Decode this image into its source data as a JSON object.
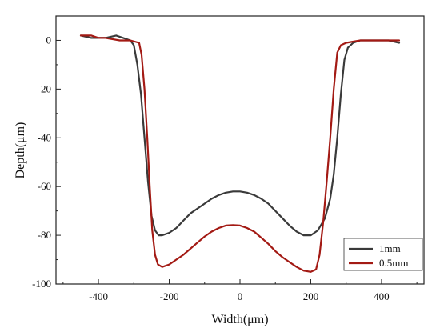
{
  "chart_data": {
    "type": "line",
    "title": "",
    "xlabel": "Width(μm)",
    "ylabel": "Depth(μm)",
    "xlim": [
      -520,
      520
    ],
    "ylim": [
      -100,
      10
    ],
    "x_ticks": [
      -400,
      -200,
      0,
      200,
      400
    ],
    "y_ticks": [
      0,
      -20,
      -40,
      -60,
      -80,
      -100
    ],
    "grid": false,
    "legend_position": "bottom-right",
    "series": [
      {
        "name": "1mm",
        "color": "#3a3a3a",
        "points": [
          [
            -450,
            2
          ],
          [
            -420,
            1
          ],
          [
            -380,
            1
          ],
          [
            -350,
            2
          ],
          [
            -330,
            1
          ],
          [
            -310,
            0
          ],
          [
            -300,
            -2
          ],
          [
            -290,
            -10
          ],
          [
            -280,
            -22
          ],
          [
            -270,
            -40
          ],
          [
            -260,
            -58
          ],
          [
            -250,
            -72
          ],
          [
            -240,
            -78
          ],
          [
            -230,
            -80
          ],
          [
            -220,
            -80
          ],
          [
            -200,
            -79
          ],
          [
            -180,
            -77
          ],
          [
            -160,
            -74
          ],
          [
            -140,
            -71
          ],
          [
            -120,
            -69
          ],
          [
            -100,
            -67
          ],
          [
            -80,
            -65
          ],
          [
            -60,
            -63.5
          ],
          [
            -40,
            -62.5
          ],
          [
            -20,
            -62
          ],
          [
            0,
            -62
          ],
          [
            20,
            -62.5
          ],
          [
            40,
            -63.5
          ],
          [
            60,
            -65
          ],
          [
            80,
            -67
          ],
          [
            100,
            -70
          ],
          [
            120,
            -73
          ],
          [
            140,
            -76
          ],
          [
            160,
            -78.5
          ],
          [
            180,
            -80
          ],
          [
            200,
            -80
          ],
          [
            220,
            -78
          ],
          [
            240,
            -73
          ],
          [
            255,
            -65
          ],
          [
            265,
            -55
          ],
          [
            275,
            -40
          ],
          [
            285,
            -22
          ],
          [
            295,
            -8
          ],
          [
            305,
            -3
          ],
          [
            320,
            -1
          ],
          [
            340,
            0
          ],
          [
            380,
            0
          ],
          [
            420,
            0
          ],
          [
            450,
            -1
          ]
        ]
      },
      {
        "name": "0.5mm",
        "color": "#a31a14",
        "points": [
          [
            -450,
            2
          ],
          [
            -420,
            2
          ],
          [
            -400,
            1
          ],
          [
            -380,
            1
          ],
          [
            -340,
            0
          ],
          [
            -310,
            0
          ],
          [
            -285,
            -1
          ],
          [
            -278,
            -6
          ],
          [
            -270,
            -20
          ],
          [
            -262,
            -40
          ],
          [
            -255,
            -60
          ],
          [
            -248,
            -78
          ],
          [
            -240,
            -88
          ],
          [
            -232,
            -92
          ],
          [
            -220,
            -93
          ],
          [
            -200,
            -92
          ],
          [
            -180,
            -90
          ],
          [
            -160,
            -88
          ],
          [
            -140,
            -85.5
          ],
          [
            -120,
            -83
          ],
          [
            -100,
            -80.5
          ],
          [
            -80,
            -78.5
          ],
          [
            -60,
            -77
          ],
          [
            -40,
            -76
          ],
          [
            -20,
            -75.8
          ],
          [
            0,
            -76
          ],
          [
            20,
            -77
          ],
          [
            40,
            -78.5
          ],
          [
            60,
            -81
          ],
          [
            80,
            -83.5
          ],
          [
            100,
            -86.5
          ],
          [
            120,
            -89
          ],
          [
            140,
            -91
          ],
          [
            160,
            -93
          ],
          [
            180,
            -94.5
          ],
          [
            200,
            -95
          ],
          [
            215,
            -94
          ],
          [
            225,
            -88
          ],
          [
            235,
            -75
          ],
          [
            245,
            -58
          ],
          [
            255,
            -40
          ],
          [
            265,
            -20
          ],
          [
            275,
            -5
          ],
          [
            285,
            -2
          ],
          [
            300,
            -1
          ],
          [
            340,
            0
          ],
          [
            380,
            0
          ],
          [
            420,
            0
          ],
          [
            450,
            0
          ]
        ]
      }
    ]
  }
}
